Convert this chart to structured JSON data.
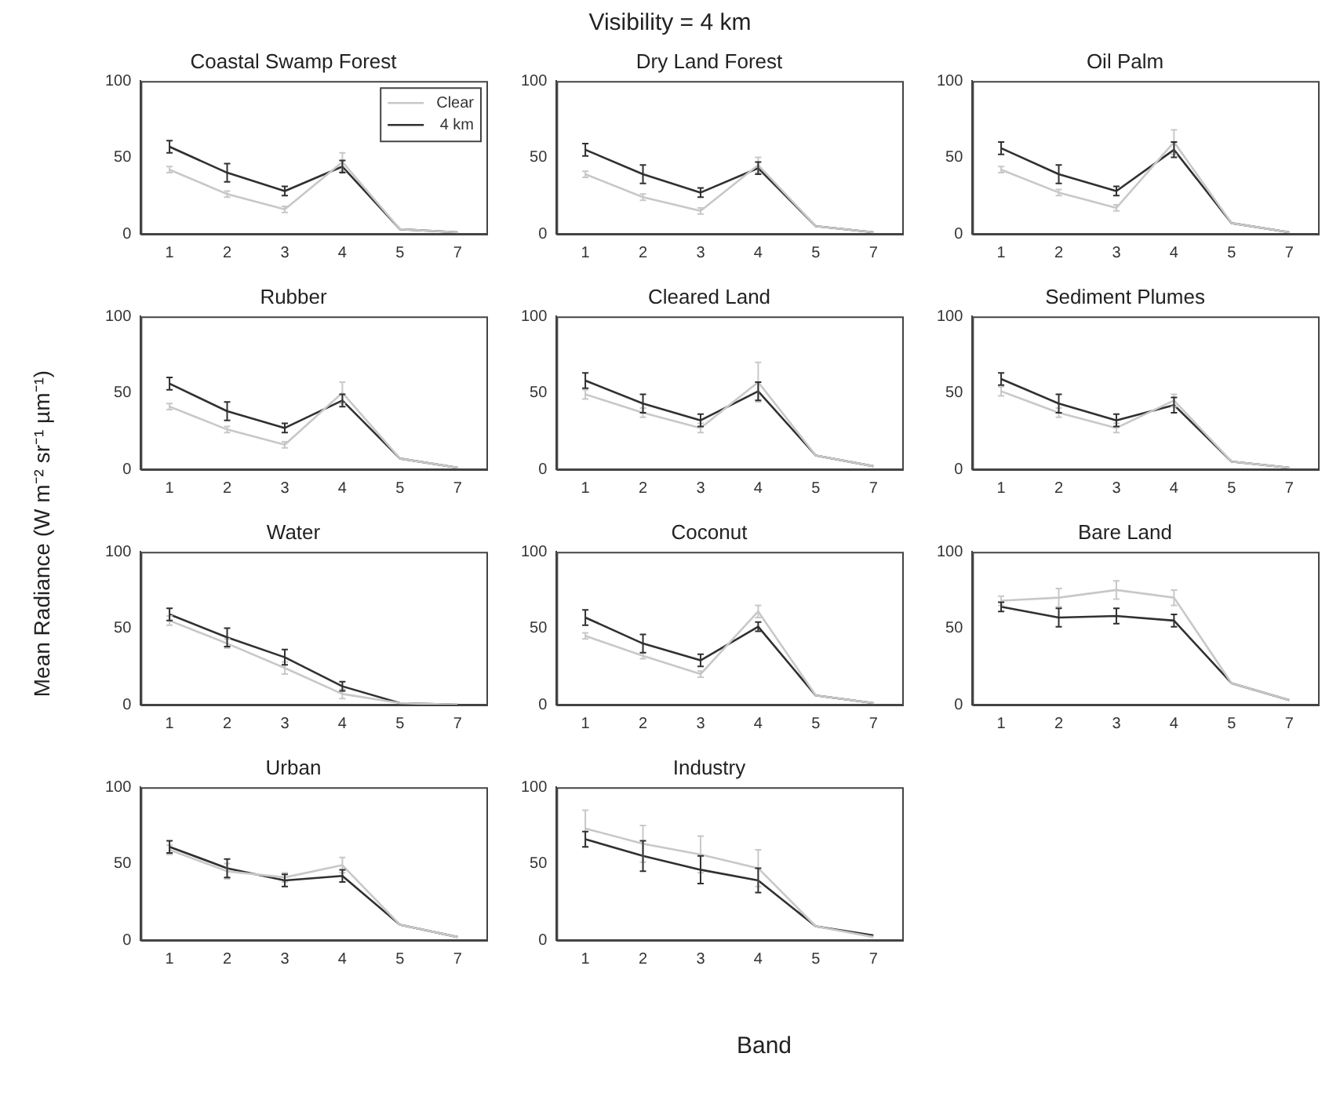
{
  "chart_data": [
    {
      "type": "other",
      "title": "Visibility = 4 km",
      "xlabel": "Band",
      "ylabel": "Mean Radiance (W m⁻² sr⁻¹ µm⁻¹)"
    },
    {
      "type": "line",
      "title": "Coastal Swamp Forest",
      "categories": [
        "1",
        "2",
        "3",
        "4",
        "5",
        "7"
      ],
      "ylim": [
        0,
        100
      ],
      "yticks": [
        0,
        50,
        100
      ],
      "grid": false,
      "legend": "top right",
      "line_style": "solid",
      "series": [
        {
          "name": "Clear",
          "color": "#c8c8c8",
          "values": [
            42,
            26,
            16,
            47,
            3,
            1
          ],
          "errors": [
            2,
            2,
            2,
            6,
            null,
            null
          ]
        },
        {
          "name": "4 km",
          "color": "#303030",
          "values": [
            57,
            40,
            28,
            44,
            3,
            1
          ],
          "errors": [
            4,
            6,
            3,
            4,
            null,
            null
          ]
        }
      ]
    },
    {
      "type": "line",
      "title": "Dry Land Forest",
      "categories": [
        "1",
        "2",
        "3",
        "4",
        "5",
        "7"
      ],
      "ylim": [
        0,
        100
      ],
      "yticks": [
        0,
        50,
        100
      ],
      "grid": false,
      "line_style": "solid",
      "series": [
        {
          "color": "#c8c8c8",
          "values": [
            39,
            24,
            15,
            45,
            5,
            1
          ],
          "errors": [
            2,
            2,
            2,
            5,
            null,
            null
          ]
        },
        {
          "color": "#303030",
          "values": [
            55,
            39,
            27,
            43,
            5,
            1
          ],
          "errors": [
            4,
            6,
            3,
            4,
            null,
            null
          ]
        }
      ]
    },
    {
      "type": "line",
      "title": "Oil Palm",
      "categories": [
        "1",
        "2",
        "3",
        "4",
        "5",
        "7"
      ],
      "ylim": [
        0,
        100
      ],
      "yticks": [
        0,
        50,
        100
      ],
      "grid": false,
      "line_style": "solid",
      "series": [
        {
          "color": "#c8c8c8",
          "values": [
            42,
            27,
            17,
            60,
            7,
            1
          ],
          "errors": [
            2,
            2,
            2,
            8,
            null,
            null
          ]
        },
        {
          "color": "#303030",
          "values": [
            56,
            39,
            28,
            55,
            7,
            1
          ],
          "errors": [
            4,
            6,
            3,
            5,
            null,
            null
          ]
        }
      ]
    },
    {
      "type": "line",
      "title": "Rubber",
      "categories": [
        "1",
        "2",
        "3",
        "4",
        "5",
        "7"
      ],
      "ylim": [
        0,
        100
      ],
      "yticks": [
        0,
        50,
        100
      ],
      "grid": false,
      "line_style": "solid",
      "series": [
        {
          "color": "#c8c8c8",
          "values": [
            41,
            26,
            16,
            50,
            7,
            1
          ],
          "errors": [
            2,
            2,
            2,
            7,
            null,
            null
          ]
        },
        {
          "color": "#303030",
          "values": [
            56,
            38,
            27,
            45,
            7,
            1
          ],
          "errors": [
            4,
            6,
            3,
            4,
            null,
            null
          ]
        }
      ]
    },
    {
      "type": "line",
      "title": "Cleared Land",
      "categories": [
        "1",
        "2",
        "3",
        "4",
        "5",
        "7"
      ],
      "ylim": [
        0,
        100
      ],
      "yticks": [
        0,
        50,
        100
      ],
      "grid": false,
      "line_style": "solid",
      "series": [
        {
          "color": "#c8c8c8",
          "values": [
            49,
            37,
            27,
            57,
            9,
            2
          ],
          "errors": [
            3,
            3,
            3,
            13,
            null,
            null
          ]
        },
        {
          "color": "#303030",
          "values": [
            58,
            43,
            32,
            51,
            9,
            2
          ],
          "errors": [
            5,
            6,
            4,
            6,
            null,
            null
          ]
        }
      ]
    },
    {
      "type": "line",
      "title": "Sediment Plumes",
      "categories": [
        "1",
        "2",
        "3",
        "4",
        "5",
        "7"
      ],
      "ylim": [
        0,
        100
      ],
      "yticks": [
        0,
        50,
        100
      ],
      "grid": false,
      "line_style": "solid",
      "series": [
        {
          "color": "#c8c8c8",
          "values": [
            51,
            37,
            27,
            45,
            5,
            1
          ],
          "errors": [
            3,
            3,
            3,
            4,
            null,
            null
          ]
        },
        {
          "color": "#303030",
          "values": [
            59,
            43,
            32,
            42,
            5,
            1
          ],
          "errors": [
            4,
            6,
            4,
            5,
            null,
            null
          ]
        }
      ]
    },
    {
      "type": "line",
      "title": "Water",
      "categories": [
        "1",
        "2",
        "3",
        "4",
        "5",
        "7"
      ],
      "ylim": [
        0,
        100
      ],
      "yticks": [
        0,
        50,
        100
      ],
      "grid": false,
      "line_style": "solid",
      "series": [
        {
          "color": "#c8c8c8",
          "values": [
            55,
            40,
            24,
            7,
            1,
            0
          ],
          "errors": [
            3,
            3,
            4,
            3,
            null,
            null
          ]
        },
        {
          "color": "#303030",
          "values": [
            59,
            44,
            31,
            12,
            1,
            0
          ],
          "errors": [
            4,
            6,
            5,
            3,
            null,
            null
          ]
        }
      ]
    },
    {
      "type": "line",
      "title": "Coconut",
      "categories": [
        "1",
        "2",
        "3",
        "4",
        "5",
        "7"
      ],
      "ylim": [
        0,
        100
      ],
      "yticks": [
        0,
        50,
        100
      ],
      "grid": false,
      "line_style": "solid",
      "series": [
        {
          "color": "#c8c8c8",
          "values": [
            45,
            32,
            20,
            61,
            6,
            1
          ],
          "errors": [
            2,
            2,
            2,
            4,
            null,
            null
          ]
        },
        {
          "color": "#303030",
          "values": [
            57,
            40,
            29,
            51,
            6,
            1
          ],
          "errors": [
            5,
            6,
            4,
            3,
            null,
            null
          ]
        }
      ]
    },
    {
      "type": "line",
      "title": "Bare Land",
      "categories": [
        "1",
        "2",
        "3",
        "4",
        "5",
        "7"
      ],
      "ylim": [
        0,
        100
      ],
      "yticks": [
        0,
        50,
        100
      ],
      "grid": false,
      "line_style": "solid",
      "series": [
        {
          "color": "#c8c8c8",
          "values": [
            68,
            70,
            75,
            70,
            14,
            3
          ],
          "errors": [
            3,
            6,
            6,
            5,
            null,
            null
          ]
        },
        {
          "color": "#303030",
          "values": [
            64,
            57,
            58,
            55,
            14,
            3
          ],
          "errors": [
            3,
            6,
            5,
            4,
            null,
            null
          ]
        }
      ]
    },
    {
      "type": "line",
      "title": "Urban",
      "categories": [
        "1",
        "2",
        "3",
        "4",
        "5",
        "7"
      ],
      "ylim": [
        0,
        100
      ],
      "yticks": [
        0,
        50,
        100
      ],
      "grid": false,
      "line_style": "solid",
      "series": [
        {
          "color": "#c8c8c8",
          "values": [
            59,
            45,
            41,
            49,
            10,
            2
          ],
          "errors": [
            3,
            5,
            3,
            5,
            null,
            null
          ]
        },
        {
          "color": "#303030",
          "values": [
            61,
            47,
            39,
            42,
            10,
            2
          ],
          "errors": [
            4,
            6,
            4,
            4,
            null,
            null
          ]
        }
      ]
    },
    {
      "type": "line",
      "title": "Industry",
      "categories": [
        "1",
        "2",
        "3",
        "4",
        "5",
        "7"
      ],
      "ylim": [
        0,
        100
      ],
      "yticks": [
        0,
        50,
        100
      ],
      "grid": false,
      "line_style": "solid",
      "series": [
        {
          "color": "#c8c8c8",
          "values": [
            73,
            63,
            56,
            47,
            9,
            2
          ],
          "errors": [
            12,
            12,
            12,
            12,
            null,
            null
          ]
        },
        {
          "color": "#303030",
          "values": [
            66,
            55,
            46,
            39,
            9,
            3
          ],
          "errors": [
            5,
            10,
            9,
            8,
            null,
            null
          ]
        }
      ]
    }
  ]
}
